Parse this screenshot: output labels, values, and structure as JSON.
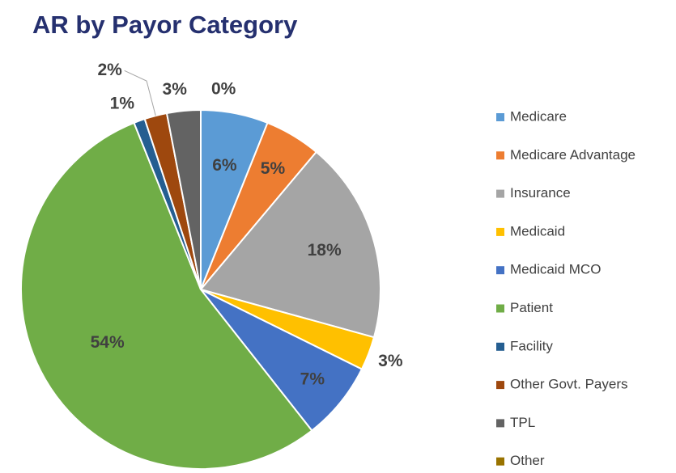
{
  "chart_data": {
    "type": "pie",
    "title": "AR by Payor Category",
    "categories": [
      "Medicare",
      "Medicare Advantage",
      "Insurance",
      "Medicaid",
      "Medicaid MCO",
      "Patient",
      "Facility",
      "Other Govt. Payers",
      "TPL",
      "Other"
    ],
    "values": [
      6,
      5,
      18,
      3,
      7,
      54,
      1,
      2,
      3,
      0
    ],
    "value_labels": [
      "6%",
      "5%",
      "18%",
      "3%",
      "7%",
      "54%",
      "1%",
      "2%",
      "3%",
      "0%"
    ],
    "colors": [
      "#5b9bd5",
      "#ed7d31",
      "#a5a5a5",
      "#ffc000",
      "#4472c4",
      "#70ad47",
      "#255e91",
      "#9e480e",
      "#636363",
      "#997300"
    ],
    "legend": "right"
  }
}
